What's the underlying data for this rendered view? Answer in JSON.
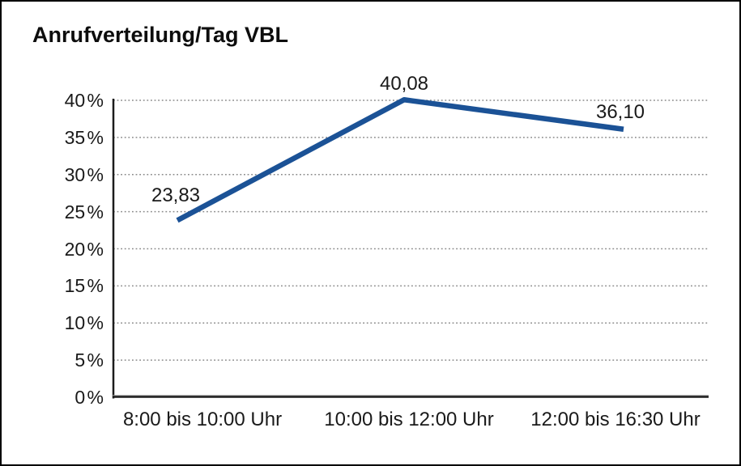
{
  "chart_data": {
    "type": "line",
    "title": "Anrufverteilung/Tag VBL",
    "categories": [
      "8:00 bis 10:00 Uhr",
      "10:00 bis 12:00 Uhr",
      "12:00 bis 16:30 Uhr"
    ],
    "series": [
      {
        "name": "Anrufverteilung/Tag VBL",
        "values": [
          23.83,
          40.08,
          36.1
        ]
      }
    ],
    "point_labels": [
      "23,83",
      "40,08",
      "36,10"
    ],
    "xlabel": "",
    "ylabel": "",
    "ylim": [
      0,
      40
    ],
    "ytick_step": 5,
    "ytick_labels": [
      "0 %",
      "5 %",
      "10 %",
      "15 %",
      "20 %",
      "25 %",
      "30 %",
      "35 %",
      "40 %"
    ],
    "grid": "horizontal-dotted",
    "legend": "none",
    "colors": {
      "line": "#1b5296",
      "axis": "#1c1c1c",
      "axis_shadow": "#9a9a9a",
      "gridline": "#8a8a8a",
      "text": "#1a1a1a",
      "background": "#ffffff",
      "frame_border": "#000000"
    }
  }
}
